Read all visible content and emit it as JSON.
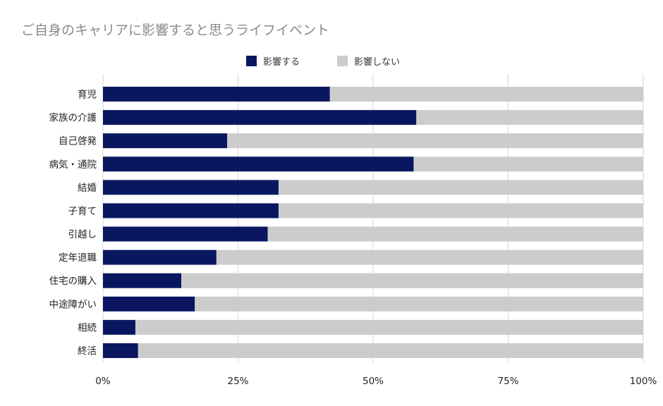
{
  "chart_data": {
    "type": "bar",
    "orientation": "horizontal",
    "stacked": "percent",
    "title": "ご自身のキャリアに影響すると思うライフイベント",
    "categories": [
      "育児",
      "家族の介護",
      "自己啓発",
      "病気・通院",
      "結婚",
      "子育て",
      "引越し",
      "定年退職",
      "住宅の購入",
      "中途障がい",
      "相続",
      "終活"
    ],
    "series": [
      {
        "name": "影響する",
        "color": "#0a1760",
        "values": [
          42,
          58,
          23,
          57.5,
          32.5,
          32.5,
          30.5,
          21,
          14.5,
          17,
          6,
          6.5
        ]
      },
      {
        "name": "影響しない",
        "color": "#cccccc",
        "values": [
          58,
          42,
          77,
          42.5,
          67.5,
          67.5,
          69.5,
          79,
          85.5,
          83,
          94,
          93.5
        ]
      }
    ],
    "xlim": [
      0,
      100
    ],
    "xticks": [
      "0%",
      "25%",
      "50%",
      "75%",
      "100%"
    ],
    "grid": true,
    "legend": "top-center"
  }
}
